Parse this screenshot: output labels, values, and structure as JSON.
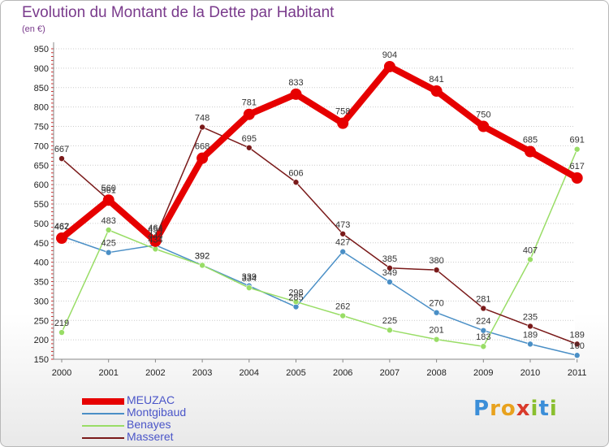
{
  "title": "Evolution du Montant de la Dette par Habitant",
  "subtitle": "(en €)",
  "logo": {
    "text": "Proxiti",
    "letters": [
      "P",
      "r",
      "o",
      "x",
      "i",
      "t",
      "i"
    ]
  },
  "chart_data": {
    "type": "line",
    "title": "Evolution du Montant de la Dette par Habitant",
    "subtitle": "(en €)",
    "x": [
      "2000",
      "2001",
      "2002",
      "2003",
      "2004",
      "2005",
      "2006",
      "2007",
      "2008",
      "2009",
      "2010",
      "2011"
    ],
    "ylim": [
      150,
      950
    ],
    "yticks": [
      150,
      200,
      250,
      300,
      350,
      400,
      450,
      500,
      550,
      600,
      650,
      700,
      750,
      800,
      850,
      900,
      950
    ],
    "grid": "horizontal-dotted",
    "legend_position": "bottom-left",
    "series": [
      {
        "name": "MEUZAC",
        "color": "#e60000",
        "width": 8,
        "marker": 7,
        "values": [
          462,
          560,
          454,
          668,
          781,
          833,
          758,
          904,
          841,
          750,
          685,
          617
        ]
      },
      {
        "name": "Montgibaud",
        "color": "#4a8fc6",
        "width": 1.5,
        "marker": 3.5,
        "values": [
          467,
          425,
          444,
          392,
          339,
          285,
          427,
          349,
          270,
          224,
          189,
          160
        ]
      },
      {
        "name": "Benayes",
        "color": "#99dd66",
        "width": 1.5,
        "marker": 3.5,
        "values": [
          219,
          483,
          434,
          392,
          334,
          298,
          262,
          225,
          201,
          183,
          407,
          691
        ]
      },
      {
        "name": "Masseret",
        "color": "#7a1a1a",
        "width": 1.5,
        "marker": 3.5,
        "values": [
          667,
          561,
          464,
          748,
          695,
          606,
          473,
          385,
          380,
          281,
          235,
          189
        ]
      }
    ]
  }
}
